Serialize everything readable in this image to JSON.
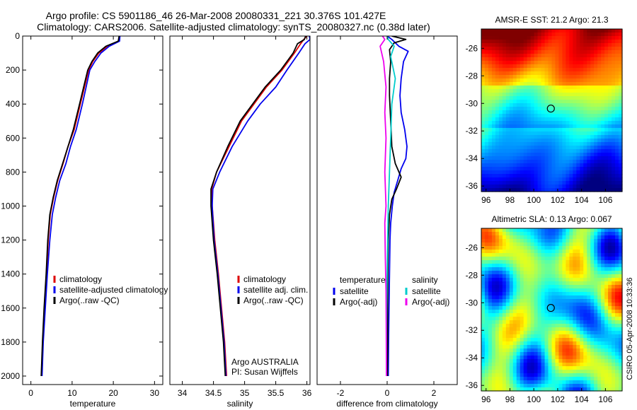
{
  "header": {
    "line1": "Argo profile: CS 5901186_46 26-Mar-2008 20080331_221 30.376S 101.427E",
    "line2": "Climatology: CARS2006. Satellite-adjusted climatology: synTS_20080327.nc (0.38d later)"
  },
  "footer_text": "CSIRO 05-Apr-2008 10:33:36",
  "chart_data": [
    {
      "id": "temperature",
      "type": "line",
      "xlabel": "temperature",
      "ylabel": "",
      "xlim": [
        -2,
        32
      ],
      "ylim": [
        2050,
        0
      ],
      "xticks": [
        0,
        10,
        20,
        30
      ],
      "yticks": [
        0,
        200,
        400,
        600,
        800,
        1000,
        1200,
        1400,
        1600,
        1800,
        2000
      ],
      "legend": {
        "placement": "lower-middle",
        "entries": [
          "climatology",
          "satellite-adjusted climatology",
          "Argo(..raw -QC)"
        ]
      },
      "series": [
        {
          "name": "climatology",
          "color": "#dd0000",
          "points": [
            [
              21.5,
              0
            ],
            [
              21.3,
              30
            ],
            [
              18.5,
              60
            ],
            [
              16.5,
              100
            ],
            [
              15,
              150
            ],
            [
              14,
              200
            ],
            [
              13,
              300
            ],
            [
              12,
              400
            ],
            [
              10.5,
              550
            ],
            [
              9,
              650
            ],
            [
              7.8,
              750
            ],
            [
              6.5,
              850
            ],
            [
              5.5,
              950
            ],
            [
              4.7,
              1050
            ],
            [
              4.2,
              1200
            ],
            [
              3.8,
              1400
            ],
            [
              3.3,
              1600
            ],
            [
              2.9,
              1800
            ],
            [
              2.6,
              2000
            ]
          ]
        },
        {
          "name": "satellite-adjusted climatology",
          "color": "#0000ee",
          "points": [
            [
              21.6,
              0
            ],
            [
              21.5,
              30
            ],
            [
              19,
              60
            ],
            [
              17,
              100
            ],
            [
              15.5,
              150
            ],
            [
              14.3,
              200
            ],
            [
              13.4,
              300
            ],
            [
              12.5,
              400
            ],
            [
              11,
              550
            ],
            [
              9.6,
              650
            ],
            [
              8.5,
              750
            ],
            [
              7,
              850
            ],
            [
              6,
              950
            ],
            [
              5.2,
              1050
            ],
            [
              4.6,
              1200
            ],
            [
              4,
              1400
            ],
            [
              3.5,
              1600
            ],
            [
              3,
              1800
            ],
            [
              2.7,
              2000
            ]
          ]
        },
        {
          "name": "Argo(..raw -QC)",
          "color": "#000000",
          "points": [
            [
              21.4,
              0
            ],
            [
              21.2,
              30
            ],
            [
              18.2,
              60
            ],
            [
              16.2,
              100
            ],
            [
              14.8,
              150
            ],
            [
              13.8,
              200
            ],
            [
              12.8,
              300
            ],
            [
              11.8,
              400
            ],
            [
              10.3,
              550
            ],
            [
              9,
              650
            ],
            [
              7.7,
              750
            ],
            [
              6.4,
              850
            ],
            [
              5.4,
              950
            ],
            [
              4.6,
              1050
            ],
            [
              4.1,
              1200
            ],
            [
              3.7,
              1400
            ],
            [
              3.2,
              1600
            ],
            [
              2.8,
              1800
            ],
            [
              2.5,
              2000
            ]
          ]
        }
      ],
      "annotations": []
    },
    {
      "id": "salinity",
      "type": "line",
      "xlabel": "salinity",
      "ylabel": "",
      "xlim": [
        33.8,
        36.05
      ],
      "ylim": [
        2050,
        0
      ],
      "xticks": [
        34,
        34.5,
        35,
        35.5,
        36
      ],
      "yticks": [],
      "legend": {
        "placement": "lower-right",
        "entries": [
          "climatology",
          "satellite adj. clim.",
          "Argo(..raw -QC)"
        ]
      },
      "series": [
        {
          "name": "climatology",
          "color": "#dd0000",
          "points": [
            [
              36.0,
              0
            ],
            [
              35.95,
              20
            ],
            [
              35.9,
              45
            ],
            [
              35.8,
              100
            ],
            [
              35.6,
              200
            ],
            [
              35.35,
              300
            ],
            [
              35.15,
              400
            ],
            [
              34.95,
              500
            ],
            [
              34.75,
              650
            ],
            [
              34.55,
              800
            ],
            [
              34.47,
              900
            ],
            [
              34.48,
              1000
            ],
            [
              34.52,
              1200
            ],
            [
              34.58,
              1400
            ],
            [
              34.63,
              1600
            ],
            [
              34.68,
              1800
            ],
            [
              34.71,
              2000
            ]
          ]
        },
        {
          "name": "satellite adj. clim.",
          "color": "#0000ee",
          "points": [
            [
              36.04,
              0
            ],
            [
              36.05,
              20
            ],
            [
              35.97,
              45
            ],
            [
              35.87,
              100
            ],
            [
              35.68,
              200
            ],
            [
              35.5,
              300
            ],
            [
              35.25,
              400
            ],
            [
              35.05,
              500
            ],
            [
              34.8,
              650
            ],
            [
              34.6,
              800
            ],
            [
              34.49,
              900
            ],
            [
              34.48,
              1000
            ],
            [
              34.51,
              1200
            ],
            [
              34.57,
              1400
            ],
            [
              34.62,
              1600
            ],
            [
              34.67,
              1800
            ],
            [
              34.7,
              2000
            ]
          ]
        },
        {
          "name": "Argo(..raw -QC)",
          "color": "#000000",
          "points": [
            [
              35.98,
              0
            ],
            [
              35.96,
              20
            ],
            [
              35.85,
              45
            ],
            [
              35.78,
              100
            ],
            [
              35.58,
              200
            ],
            [
              35.33,
              300
            ],
            [
              35.13,
              400
            ],
            [
              34.93,
              500
            ],
            [
              34.73,
              650
            ],
            [
              34.55,
              800
            ],
            [
              34.46,
              900
            ],
            [
              34.46,
              1000
            ],
            [
              34.5,
              1200
            ],
            [
              34.56,
              1400
            ],
            [
              34.61,
              1600
            ],
            [
              34.66,
              1800
            ],
            [
              34.69,
              2000
            ]
          ]
        }
      ],
      "annotations": [
        "Argo AUSTRALIA",
        "PI: Susan Wijffels"
      ]
    },
    {
      "id": "difference",
      "type": "line",
      "xlabel": "difference from climatology",
      "ylabel": "",
      "xlim": [
        -3,
        3
      ],
      "ylim": [
        2050,
        0
      ],
      "xticks": [
        -2,
        0,
        2
      ],
      "yticks": [],
      "legend": {
        "placement": "lower-middle",
        "columns": [
          {
            "title": "temperature",
            "entries": [
              "satellite",
              "Argo(-adj)"
            ]
          },
          {
            "title": "salinity",
            "entries": [
              "satellite",
              "Argo(-adj)"
            ]
          }
        ]
      },
      "series": [
        {
          "name": "temperature satellite",
          "color": "#0000ee",
          "points": [
            [
              0,
              0
            ],
            [
              0.2,
              20
            ],
            [
              0.5,
              60
            ],
            [
              0.9,
              90
            ],
            [
              0.7,
              150
            ],
            [
              0.6,
              250
            ],
            [
              0.55,
              350
            ],
            [
              0.6,
              450
            ],
            [
              0.75,
              550
            ],
            [
              0.85,
              650
            ],
            [
              0.8,
              720
            ],
            [
              0.6,
              780
            ],
            [
              0.45,
              850
            ],
            [
              0.3,
              920
            ],
            [
              0.22,
              1000
            ],
            [
              0.15,
              1100
            ],
            [
              0.12,
              1200
            ],
            [
              0.1,
              1400
            ],
            [
              0.08,
              1600
            ],
            [
              0.06,
              1800
            ],
            [
              0.05,
              2000
            ]
          ]
        },
        {
          "name": "temperature Argo(-adj)",
          "color": "#000000",
          "points": [
            [
              0.2,
              0
            ],
            [
              0.8,
              20
            ],
            [
              0.3,
              40
            ],
            [
              0.1,
              80
            ],
            [
              0.15,
              150
            ],
            [
              0.1,
              250
            ],
            [
              0.1,
              350
            ],
            [
              0.15,
              500
            ],
            [
              0.2,
              650
            ],
            [
              0.35,
              750
            ],
            [
              0.6,
              830
            ],
            [
              0.4,
              900
            ],
            [
              0.2,
              960
            ],
            [
              0.1,
              1050
            ],
            [
              0.05,
              1200
            ],
            [
              0.03,
              1400
            ],
            [
              0.02,
              1600
            ],
            [
              0.02,
              1800
            ],
            [
              0.01,
              2000
            ]
          ]
        },
        {
          "name": "salinity satellite",
          "color": "#00cccc",
          "points": [
            [
              0,
              0
            ],
            [
              0.05,
              20
            ],
            [
              0.3,
              60
            ],
            [
              0.15,
              120
            ],
            [
              0.35,
              250
            ],
            [
              0.2,
              400
            ],
            [
              0.15,
              600
            ],
            [
              0.1,
              800
            ],
            [
              0.05,
              1000
            ],
            [
              0.02,
              1200
            ],
            [
              0.0,
              1400
            ],
            [
              -0.02,
              1600
            ],
            [
              -0.03,
              1800
            ],
            [
              -0.03,
              2000
            ]
          ]
        },
        {
          "name": "salinity Argo(-adj)",
          "color": "#ee00ee",
          "points": [
            [
              -0.2,
              0
            ],
            [
              -0.1,
              20
            ],
            [
              -0.3,
              60
            ],
            [
              -0.15,
              150
            ],
            [
              -0.05,
              300
            ],
            [
              -0.1,
              450
            ],
            [
              -0.05,
              600
            ],
            [
              -0.1,
              800
            ],
            [
              -0.05,
              1000
            ],
            [
              -0.1,
              1100
            ],
            [
              -0.08,
              1300
            ],
            [
              -0.05,
              1500
            ],
            [
              -0.04,
              1700
            ],
            [
              -0.03,
              2000
            ]
          ]
        }
      ],
      "annotations": []
    },
    {
      "id": "sst-map",
      "type": "heatmap",
      "title": "AMSR-E SST: 21.2 Argo: 21.3",
      "xlim": [
        95.6,
        107.4
      ],
      "ylim": [
        -36.4,
        -24.6
      ],
      "xticks": [
        96,
        98,
        100,
        102,
        104,
        106
      ],
      "yticks": [
        -26,
        -28,
        -30,
        -32,
        -34,
        -36
      ],
      "marker": {
        "lon": 101.427,
        "lat": -30.376
      }
    },
    {
      "id": "sla-map",
      "type": "heatmap",
      "title": "Altimetric SLA: 0.13 Argo: 0.067",
      "xlim": [
        95.6,
        107.4
      ],
      "ylim": [
        -36.4,
        -24.6
      ],
      "xticks": [
        96,
        98,
        100,
        102,
        104,
        106
      ],
      "yticks": [
        -26,
        -28,
        -30,
        -32,
        -34,
        -36
      ],
      "marker": {
        "lon": 101.427,
        "lat": -30.376
      }
    }
  ]
}
